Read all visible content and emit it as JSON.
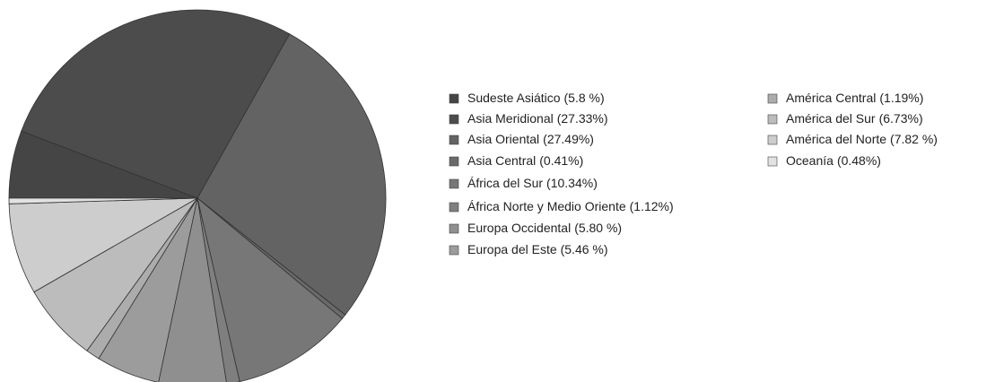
{
  "chart_data": {
    "type": "pie",
    "categories": [
      "Sudeste Asiático",
      "Asia Meridional",
      "Asia Oriental",
      "Asia Central",
      "África del Sur",
      "África Norte y Medio Oriente",
      "Europa Occidental",
      "Europa del Este",
      "América Central",
      "América del Sur",
      "América del Norte",
      "Oceanía"
    ],
    "values": [
      5.8,
      27.33,
      27.49,
      0.41,
      10.34,
      1.12,
      5.8,
      5.46,
      1.19,
      6.73,
      7.82,
      0.48
    ],
    "value_labels": [
      "(5.8 %)",
      "(27.33%)",
      "(27.49%)",
      "(0.41%)",
      "(10.34%)",
      "(1.12%)",
      "(5.80 %)",
      "(5.46 %)",
      "(1.19%)",
      "(6.73%)",
      "(7.82 %)",
      "(0.48%)"
    ],
    "colors": [
      "#454545",
      "#4c4c4c",
      "#636363",
      "#6a6a6a",
      "#777777",
      "#7f7f7f",
      "#8f8f8f",
      "#9c9c9c",
      "#acacac",
      "#bcbcbc",
      "#cdcdcd",
      "#e2e2e2"
    ],
    "legend": "right"
  }
}
